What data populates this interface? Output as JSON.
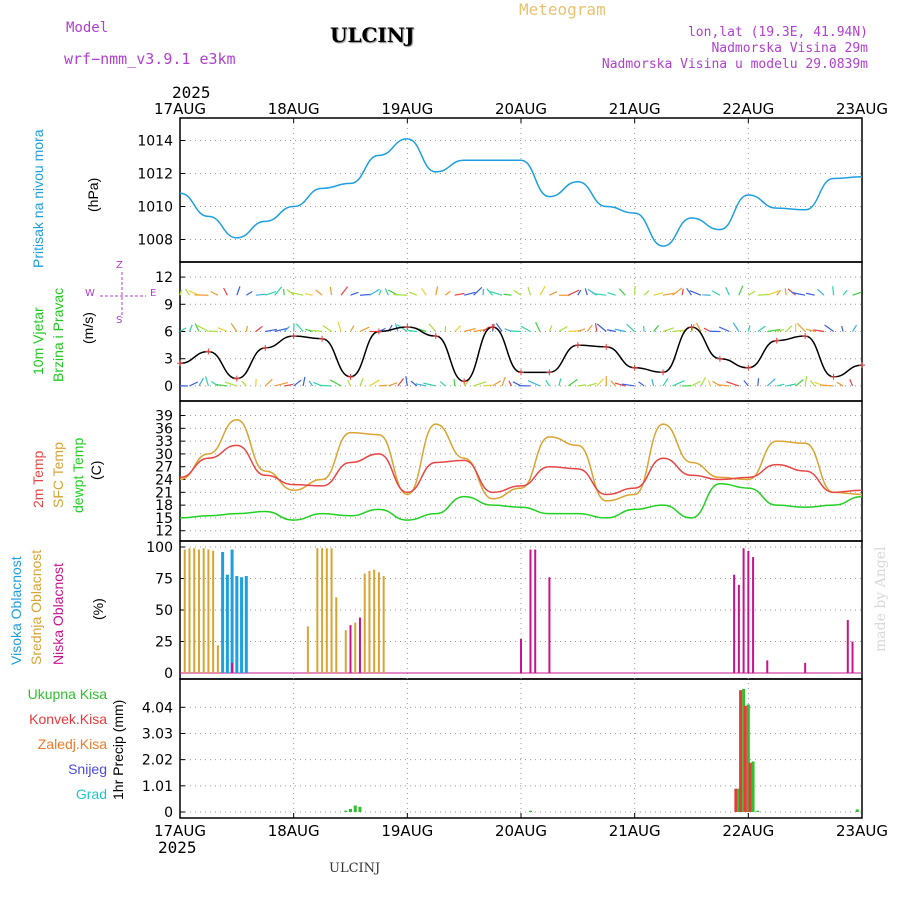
{
  "header": {
    "model_label": "Model",
    "model_name": "wrf−nmm_v3.9.1  e3km",
    "title": "ULCINJ",
    "meteogram": "Meteogram",
    "lonlat": "lon,lat (19.3E, 41.94N)",
    "altitude": "Nadmorska Visina 29m",
    "model_altitude": "Nadmorska Visina u modelu 29.0839m",
    "year_top": "2025",
    "year_bottom": "2025",
    "footer_station": "ULCINJ",
    "credit": "made by Angel"
  },
  "colors": {
    "pressure": "#1e9fe0",
    "wind_label": "#1fc91f",
    "temp2m": "#e84646",
    "sfc": "#d9a431",
    "dewpt": "#22d022",
    "high_cloud": "#1e9fe0",
    "mid_cloud": "#d9a431",
    "low_cloud": "#c8148c",
    "total_precip": "#2fc02f",
    "conv_precip": "#e83a3a",
    "frozen": "#f07a2a",
    "snow": "#4a4ae0",
    "hail": "#22c8c8",
    "axis_purple": "#b040d0"
  },
  "chart_data": [
    {
      "type": "line",
      "panel": "pressure",
      "ylabel_title": "Pritisak na nivou mora",
      "ylabel_unit": "(hPa)",
      "ylim": [
        1007,
        1015
      ],
      "yticks": [
        "1008",
        "1010",
        "1012",
        "1014"
      ],
      "x_labels": [
        "17AUG",
        "18AUG",
        "19AUG",
        "20AUG",
        "21AUG",
        "22AUG",
        "23AUG"
      ],
      "x_hours": [
        0,
        6,
        12,
        18,
        24,
        30,
        36,
        42,
        48,
        54,
        60,
        66,
        72,
        78,
        84,
        90,
        96,
        102,
        108,
        114,
        120,
        126,
        132,
        138,
        144
      ],
      "series": [
        {
          "name": "Pritisak",
          "values": [
            1010.8,
            1009.4,
            1008.1,
            1009.1,
            1010.0,
            1011.1,
            1011.4,
            1013.1,
            1014.1,
            1012.1,
            1012.8,
            1012.8,
            1012.8,
            1010.6,
            1011.5,
            1010.0,
            1009.6,
            1007.6,
            1009.3,
            1008.6,
            1010.7,
            1009.9,
            1009.8,
            1011.7,
            1011.8
          ]
        }
      ]
    },
    {
      "type": "line",
      "panel": "wind",
      "ylabel_title": "10m Vjetar",
      "ylabel_title2": "Brzina i Pravac",
      "ylabel_unit": "(m/s)",
      "compass": [
        "Z",
        "W",
        "E",
        "S"
      ],
      "ylim": [
        -1,
        13
      ],
      "yticks": [
        "0",
        "3",
        "6",
        "9",
        "12"
      ],
      "x_hours": [
        0,
        6,
        12,
        18,
        24,
        30,
        36,
        42,
        48,
        54,
        60,
        66,
        72,
        78,
        84,
        90,
        96,
        102,
        108,
        114,
        120,
        126,
        132,
        138,
        144
      ],
      "series": [
        {
          "name": "Brzina",
          "values": [
            2.5,
            3.8,
            0.8,
            4.2,
            5.5,
            5.2,
            1.0,
            6.0,
            6.5,
            5.5,
            0.5,
            6.5,
            1.5,
            1.5,
            4.5,
            4.3,
            2.0,
            1.5,
            6.5,
            3.0,
            2.0,
            5.0,
            5.5,
            1.0,
            2.3
          ]
        }
      ]
    },
    {
      "type": "line",
      "panel": "temperature",
      "ylabel_titles": [
        "2m Temp",
        "SFC Temp",
        "dewpt Temp"
      ],
      "ylabel_unit": "(C)",
      "ylim": [
        11,
        41
      ],
      "yticks": [
        "12",
        "15",
        "18",
        "21",
        "24",
        "27",
        "30",
        "33",
        "36",
        "39"
      ],
      "x_hours": [
        0,
        6,
        12,
        18,
        24,
        30,
        36,
        42,
        48,
        54,
        60,
        66,
        72,
        78,
        84,
        90,
        96,
        102,
        108,
        114,
        120,
        126,
        132,
        138,
        144
      ],
      "series": [
        {
          "name": "2m Temp",
          "values": [
            24.5,
            29.0,
            32.0,
            25.0,
            22.8,
            22.5,
            28.0,
            30.0,
            21.0,
            28.0,
            28.5,
            21.0,
            22.5,
            27.0,
            26.5,
            20.5,
            22.0,
            29.0,
            25.0,
            24.0,
            24.5,
            27.5,
            26.0,
            21.0,
            21.5
          ]
        },
        {
          "name": "SFC Temp",
          "values": [
            24.0,
            30.0,
            38.0,
            26.0,
            21.5,
            24.0,
            35.0,
            34.5,
            20.5,
            37.0,
            29.0,
            19.5,
            22.0,
            34.0,
            32.0,
            19.0,
            20.5,
            37.0,
            28.0,
            24.5,
            24.0,
            33.0,
            32.5,
            21.0,
            20.5
          ]
        },
        {
          "name": "dewpt Temp",
          "values": [
            15.0,
            15.5,
            16.0,
            16.5,
            14.5,
            16.0,
            15.5,
            17.0,
            14.5,
            16.0,
            20.0,
            18.0,
            17.5,
            16.0,
            16.0,
            15.0,
            17.0,
            18.0,
            15.0,
            23.0,
            22.0,
            18.0,
            17.5,
            18.0,
            20.0
          ]
        }
      ]
    },
    {
      "type": "bar",
      "panel": "cloud",
      "ylabel_titles": [
        "Visoka Oblacnost",
        "Srednja Oblacnost",
        "Niska Oblacnost"
      ],
      "ylabel_unit": "(%)",
      "ylim": [
        0,
        100
      ],
      "yticks": [
        "0",
        "25",
        "50",
        "75",
        "100"
      ],
      "series": [
        {
          "name": "Visoka Oblacnost",
          "hours": [
            9,
            10,
            11,
            12,
            13,
            14
          ],
          "values": [
            96,
            78,
            98,
            77,
            76,
            77
          ]
        },
        {
          "name": "Srednja Oblacnost",
          "hours": [
            1,
            2,
            3,
            4,
            5,
            6,
            7,
            8,
            27,
            29,
            30,
            31,
            32,
            33,
            35,
            37,
            39,
            40,
            41,
            42,
            43
          ],
          "values": [
            98,
            99,
            99,
            98,
            99,
            98,
            97,
            22,
            37,
            99,
            99,
            99,
            99,
            60,
            34,
            40,
            79,
            81,
            82,
            80,
            77
          ]
        },
        {
          "name": "Niska Oblacnost",
          "hours": [
            11,
            36,
            38,
            72,
            74,
            75,
            78,
            117,
            118,
            119,
            120,
            121,
            124,
            132,
            141,
            142
          ],
          "values": [
            8,
            38,
            44,
            27,
            98,
            98,
            76,
            78,
            70,
            99,
            97,
            92,
            10,
            8,
            42,
            25
          ]
        }
      ]
    },
    {
      "type": "bar",
      "panel": "precip",
      "legend": [
        "Ukupna Kisa",
        "Konvek.Kisa",
        "Zaledj.Kisa",
        "Snijeg",
        "Grad"
      ],
      "ylabel_unit": "1hr Precip (mm)",
      "ylim": [
        0,
        4.9
      ],
      "yticks": [
        "0",
        "1.01",
        "2.02",
        "3.03",
        "4.04"
      ],
      "series": [
        {
          "name": "Ukupna Kisa",
          "hours": [
            35,
            36,
            37,
            38,
            74,
            118,
            119,
            120,
            121,
            122,
            143
          ],
          "values": [
            0.05,
            0.12,
            0.25,
            0.2,
            0.05,
            0.9,
            4.75,
            4.15,
            1.95,
            0.05,
            0.1
          ]
        },
        {
          "name": "Konvek.Kisa",
          "hours": [
            118,
            119,
            120,
            121
          ],
          "values": [
            0.9,
            4.7,
            4.1,
            1.9
          ]
        }
      ]
    }
  ]
}
